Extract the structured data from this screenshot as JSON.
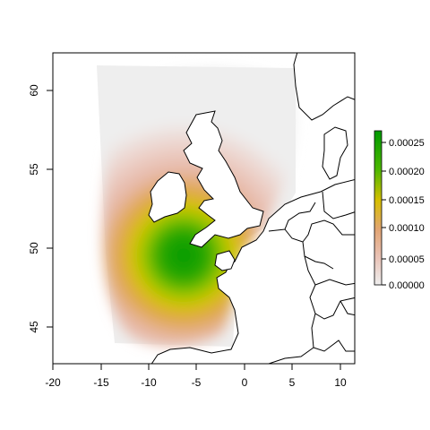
{
  "chart_data": {
    "type": "heatmap",
    "title": "",
    "xlabel": "",
    "ylabel": "",
    "xlim": [
      -20,
      11.5
    ],
    "ylim": [
      42.7,
      62.3
    ],
    "x_ticks": [
      "-20",
      "-15",
      "-10",
      "-5",
      "0",
      "5",
      "10"
    ],
    "y_ticks": [
      "45",
      "50",
      "55",
      "60"
    ],
    "legend": {
      "position": "right",
      "range": [
        0,
        0.00027
      ],
      "labels": [
        "0.00000",
        "0.00005",
        "0.00010",
        "0.00015",
        "0.00020",
        "0.00025"
      ],
      "colors": [
        "#eeeeee",
        "#e9c2b6",
        "#e2a574",
        "#d6bf00",
        "#4cb700",
        "#009a00"
      ]
    },
    "density_peak": {
      "lon": -6,
      "lat": 49.5,
      "value": 0.00026
    }
  },
  "colors": {
    "background_pad": "#eeeeee",
    "land": "#ffffff",
    "outline": "#000000"
  }
}
